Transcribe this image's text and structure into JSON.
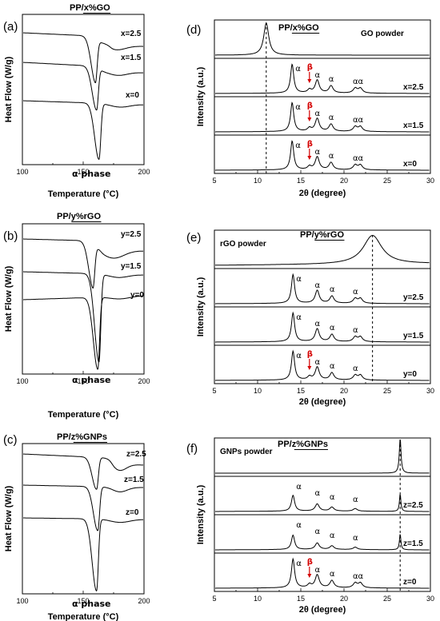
{
  "panels": {
    "a": {
      "letter": "(a)",
      "title": "PP/x%GO",
      "ylabel": "Heat Flow (W/g)",
      "xlabel": "Temperature (°C)",
      "phase": "α phase"
    },
    "b": {
      "letter": "(b)",
      "title": "PP/y%rGO",
      "ylabel": "Heat Flow (W/g)",
      "xlabel": "Temperature (°C)",
      "phase": "α phase"
    },
    "c": {
      "letter": "(c)",
      "title": "PP/z%GNPs",
      "ylabel": "Heat Flow (W/g)",
      "xlabel": "Temperature (°C)",
      "phase": "α phase"
    },
    "d": {
      "letter": "(d)",
      "title": "PP/x%GO",
      "ylabel": "Intensity (a.u.)",
      "xlabel": "2θ (degree)",
      "powder": "GO powder",
      "alpha_label": "α",
      "beta_label": "β"
    },
    "e": {
      "letter": "(e)",
      "title": "PP/y%rGO",
      "ylabel": "Intensity (a.u.)",
      "xlabel": "2θ (degree)",
      "powder": "rGO powder",
      "alpha_label": "α",
      "beta_label": "β"
    },
    "f": {
      "letter": "(f)",
      "title": "PP/z%GNPs",
      "ylabel": "Intensity (a.u.)",
      "xlabel": "2θ (degree)",
      "powder": "GNPs powder",
      "alpha_label": "α",
      "beta_label": "β"
    }
  },
  "chart_data": [
    {
      "id": "a",
      "type": "line",
      "title": "PP/x%GO",
      "xlabel": "Temperature (°C)",
      "ylabel": "Heat Flow (W/g)",
      "xlim": [
        100,
        200
      ],
      "xticks": [
        100,
        150,
        200
      ],
      "series": [
        {
          "name": "x=2.5",
          "peak_x": 160
        },
        {
          "name": "x=1.5",
          "peak_x": 161
        },
        {
          "name": "x=0",
          "peak_x": 163
        }
      ],
      "annotations": [
        "α phase"
      ]
    },
    {
      "id": "b",
      "type": "line",
      "title": "PP/y%rGO",
      "xlabel": "Temperature (°C)",
      "ylabel": "Heat Flow (W/g)",
      "xlim": [
        100,
        200
      ],
      "xticks": [
        100,
        150,
        200
      ],
      "series": [
        {
          "name": "y=2.5",
          "peak_x": 158
        },
        {
          "name": "y=1.5",
          "peak_x": 163
        },
        {
          "name": "y=0",
          "peak_x": 162
        }
      ],
      "annotations": [
        "α phase"
      ]
    },
    {
      "id": "c",
      "type": "line",
      "title": "PP/z%GNPs",
      "xlabel": "Temperature (°C)",
      "ylabel": "Heat Flow (W/g)",
      "xlim": [
        100,
        200
      ],
      "xticks": [
        100,
        150,
        200
      ],
      "series": [
        {
          "name": "z=2.5",
          "peak_x": 161
        },
        {
          "name": "z=1.5",
          "peak_x": 162
        },
        {
          "name": "z=0",
          "peak_x": 161
        }
      ],
      "annotations": [
        "α phase"
      ]
    },
    {
      "id": "d",
      "type": "line",
      "title": "PP/x%GO",
      "xlabel": "2θ (degree)",
      "ylabel": "Intensity (a.u.)",
      "xlim": [
        5,
        30
      ],
      "xticks": [
        5,
        10,
        15,
        20,
        25,
        30
      ],
      "reference_line_x": 11,
      "series": [
        {
          "name": "GO powder",
          "peaks_2theta": [
            11
          ]
        },
        {
          "name": "x=2.5",
          "alpha_peaks": [
            14,
            16.9,
            18.5,
            21.3,
            21.9
          ],
          "beta_peak": 16
        },
        {
          "name": "x=1.5",
          "alpha_peaks": [
            14,
            16.9,
            18.5,
            21.3,
            21.9
          ],
          "beta_peak": 16
        },
        {
          "name": "x=0",
          "alpha_peaks": [
            14,
            16.9,
            18.5,
            21.3,
            21.9
          ],
          "beta_peak": 16
        }
      ]
    },
    {
      "id": "e",
      "type": "line",
      "title": "PP/y%rGO",
      "xlabel": "2θ (degree)",
      "ylabel": "Intensity (a.u.)",
      "xlim": [
        5,
        30
      ],
      "xticks": [
        5,
        10,
        15,
        20,
        25,
        30
      ],
      "reference_line_x": 23.3,
      "series": [
        {
          "name": "rGO powder",
          "peaks_2theta": [
            23.3
          ]
        },
        {
          "name": "y=2.5",
          "alpha_peaks": [
            14.1,
            16.9,
            18.6,
            21.3,
            21.9
          ]
        },
        {
          "name": "y=1.5",
          "alpha_peaks": [
            14.1,
            16.9,
            18.6,
            21.3,
            21.9
          ]
        },
        {
          "name": "y=0",
          "alpha_peaks": [
            14.1,
            16.9,
            18.6,
            21.3,
            21.9
          ],
          "beta_peak": 16
        }
      ]
    },
    {
      "id": "f",
      "type": "line",
      "title": "PP/z%GNPs",
      "xlabel": "2θ (degree)",
      "ylabel": "Intensity (a.u.)",
      "xlim": [
        5,
        30
      ],
      "xticks": [
        5,
        10,
        15,
        20,
        25,
        30
      ],
      "reference_line_x": 26.5,
      "series": [
        {
          "name": "GNPs powder",
          "peaks_2theta": [
            26.5
          ]
        },
        {
          "name": "z=2.5",
          "alpha_peaks": [
            14.1,
            16.9,
            18.6,
            21.3
          ],
          "graphite_peak": 26.5
        },
        {
          "name": "z=1.5",
          "alpha_peaks": [
            14.1,
            16.9,
            18.6,
            21.3
          ],
          "graphite_peak": 26.5
        },
        {
          "name": "z=0",
          "alpha_peaks": [
            14.1,
            16.9,
            18.6,
            21.3,
            21.9
          ],
          "beta_peak": 16
        }
      ]
    }
  ]
}
